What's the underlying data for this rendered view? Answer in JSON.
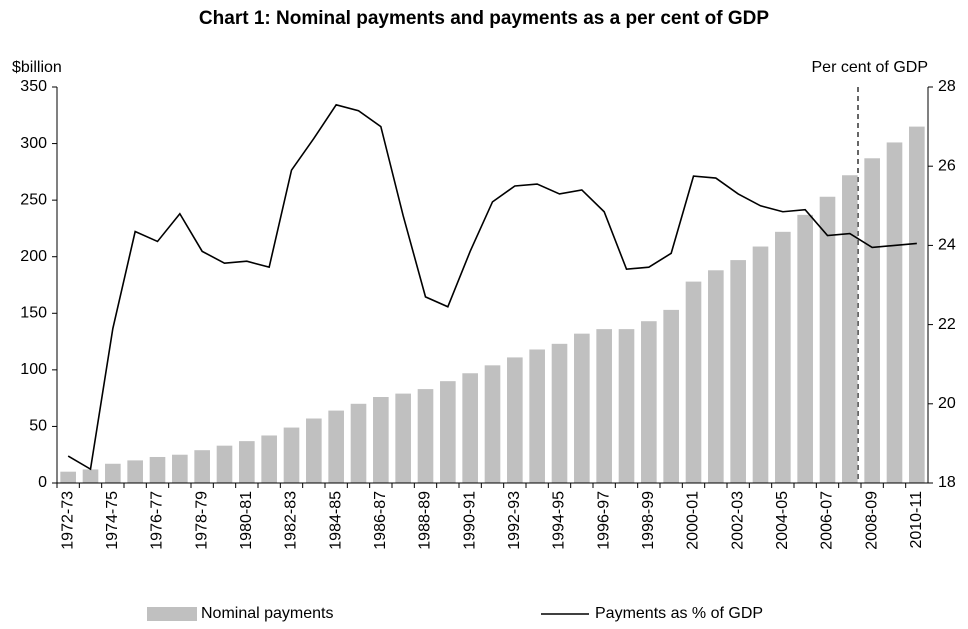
{
  "chart_data": {
    "type": "bar_line",
    "title": "Chart 1: Nominal payments and payments as a per cent of GDP",
    "y_label": "$billion",
    "y2_label": "Per cent of GDP",
    "categories": [
      "1972-73",
      null,
      "1974-75",
      null,
      "1976-77",
      null,
      "1978-79",
      null,
      "1980-81",
      null,
      "1982-83",
      null,
      "1984-85",
      null,
      "1986-87",
      null,
      "1988-89",
      null,
      "1990-91",
      null,
      "1992-93",
      null,
      "1994-95",
      null,
      "1996-97",
      null,
      "1998-99",
      null,
      "2000-01",
      null,
      "2002-03",
      null,
      "2004-05",
      null,
      "2006-07",
      null,
      "2008-09",
      null,
      "2010-11"
    ],
    "series": [
      {
        "name": "Nominal payments",
        "type": "bar",
        "color": "#c0c0c0",
        "axis": "y",
        "values": [
          10,
          12,
          17,
          20,
          23,
          25,
          29,
          33,
          37,
          42,
          49,
          57,
          64,
          70,
          76,
          79,
          83,
          90,
          97,
          104,
          111,
          118,
          123,
          132,
          136,
          136,
          143,
          153,
          178,
          188,
          197,
          209,
          222,
          237,
          253,
          272,
          287,
          301,
          315
        ]
      },
      {
        "name": "Payments as % of GDP",
        "type": "line",
        "color": "#000000",
        "axis": "y2",
        "values": [
          18.68,
          18.35,
          21.9,
          24.35,
          24.1,
          24.8,
          23.85,
          23.55,
          23.6,
          23.45,
          25.9,
          26.7,
          27.55,
          27.4,
          27.0,
          24.75,
          22.7,
          22.45,
          23.85,
          25.1,
          25.5,
          25.55,
          25.3,
          25.4,
          24.85,
          23.4,
          23.45,
          23.8,
          25.75,
          25.7,
          25.3,
          25.0,
          24.85,
          24.9,
          24.25,
          24.3,
          23.95,
          24.0,
          24.05
        ]
      }
    ],
    "ylim": [
      0,
      350
    ],
    "yticks": [
      0,
      50,
      100,
      150,
      200,
      250,
      300,
      350
    ],
    "y2lim": [
      18,
      28
    ],
    "y2ticks": [
      18,
      20,
      22,
      24,
      26,
      28
    ],
    "legend": "bottom"
  }
}
